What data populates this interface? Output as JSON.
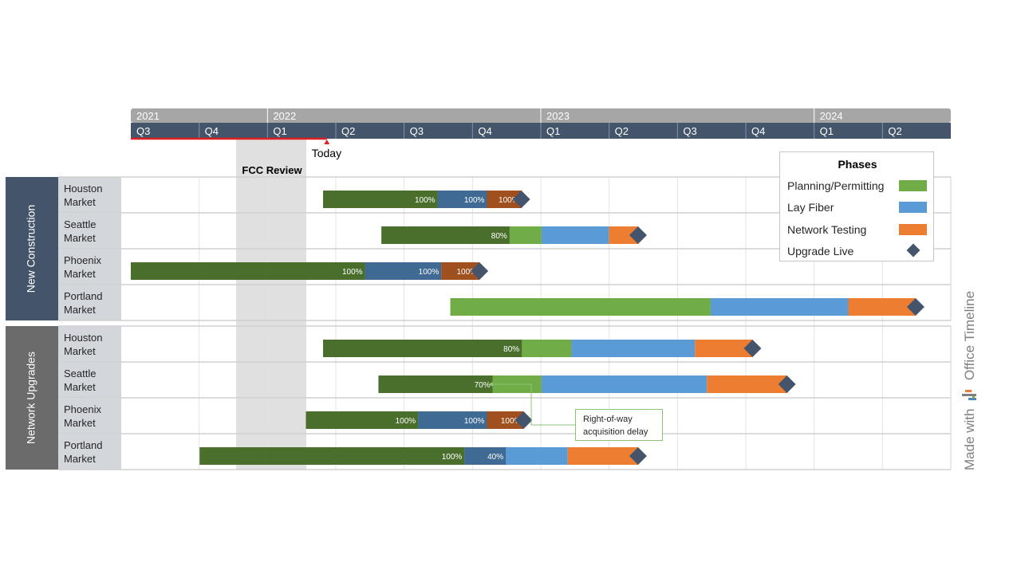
{
  "chart_data": {
    "type": "gantt",
    "timescale": {
      "years": [
        "2021",
        "2022",
        "2023",
        "2024"
      ],
      "quarters": [
        "Q3",
        "Q4",
        "Q1",
        "Q2",
        "Q3",
        "Q4",
        "Q1",
        "Q2",
        "Q3",
        "Q4",
        "Q1",
        "Q2"
      ]
    },
    "today_label": "Today",
    "shaded_period": {
      "label": "FCC Review",
      "start": "2022-Q1",
      "end": "2022-Q1"
    },
    "groups": [
      {
        "name": "New Construction",
        "rows": [
          {
            "label": [
              "Houston",
              "Market"
            ],
            "tasks": [
              {
                "phase": "Planning/Permitting",
                "start": "2022-03-15",
                "end": "2022-08-15",
                "percent_label": "100%"
              },
              {
                "phase": "Lay Fiber",
                "start": "2022-08-15",
                "end": "2022-10-20",
                "percent_label": "100%"
              },
              {
                "phase": "Network Testing",
                "start": "2022-10-20",
                "end": "2022-12-05",
                "percent_label": "100%"
              }
            ],
            "milestone": "2022-12-05"
          },
          {
            "label": [
              "Seattle",
              "Market"
            ],
            "tasks": [
              {
                "phase": "Planning/Permitting",
                "start": "2022-06-01",
                "end": "2023-01-01",
                "percent_label": "80%"
              },
              {
                "phase": "Lay Fiber",
                "start": "2023-01-01",
                "end": "2023-04-01"
              },
              {
                "phase": "Network Testing",
                "start": "2023-04-01",
                "end": "2023-05-10"
              }
            ],
            "milestone": "2023-05-10"
          },
          {
            "label": [
              "Phoenix",
              "Market"
            ],
            "tasks": [
              {
                "phase": "Planning/Permitting",
                "start": "2021-07-01",
                "end": "2022-05-10",
                "percent_label": "100%"
              },
              {
                "phase": "Lay Fiber",
                "start": "2022-05-10",
                "end": "2022-08-20",
                "percent_label": "100%"
              },
              {
                "phase": "Network Testing",
                "start": "2022-08-20",
                "end": "2022-10-10",
                "percent_label": "100%"
              }
            ],
            "milestone": "2022-10-10"
          },
          {
            "label": [
              "Portland",
              "Market"
            ],
            "tasks": [
              {
                "phase": "Planning/Permitting",
                "start": "2022-09-01",
                "end": "2023-08-15"
              },
              {
                "phase": "Lay Fiber",
                "start": "2023-08-15",
                "end": "2024-02-15"
              },
              {
                "phase": "Network Testing",
                "start": "2024-02-15",
                "end": "2024-05-15"
              }
            ],
            "milestone": "2024-05-15"
          }
        ]
      },
      {
        "name": "Network Upgrades",
        "rows": [
          {
            "label": [
              "Houston",
              "Market"
            ],
            "tasks": [
              {
                "phase": "Planning/Permitting",
                "start": "2022-03-15",
                "end": "2023-02-10",
                "percent_label": "80%"
              },
              {
                "phase": "Lay Fiber",
                "start": "2023-02-10",
                "end": "2023-07-25"
              },
              {
                "phase": "Network Testing",
                "start": "2023-07-25",
                "end": "2023-10-10"
              }
            ],
            "milestone": "2023-10-10"
          },
          {
            "label": [
              "Seattle",
              "Market"
            ],
            "tasks": [
              {
                "phase": "Planning/Permitting",
                "start": "2022-05-28",
                "end": "2023-01-01",
                "percent_label": "70%"
              },
              {
                "phase": "Lay Fiber",
                "start": "2023-01-01",
                "end": "2023-08-10"
              },
              {
                "phase": "Network Testing",
                "start": "2023-08-10",
                "end": "2023-11-25"
              }
            ],
            "milestone": "2023-11-25"
          },
          {
            "label": [
              "Phoenix",
              "Market"
            ],
            "tasks": [
              {
                "phase": "Planning/Permitting",
                "start": "2022-02-20",
                "end": "2022-07-20",
                "percent_label": "100%"
              },
              {
                "phase": "Lay Fiber",
                "start": "2022-07-20",
                "end": "2022-10-20",
                "percent_label": "100%"
              },
              {
                "phase": "Network Testing",
                "start": "2022-10-20",
                "end": "2022-12-08",
                "percent_label": "100%"
              }
            ],
            "milestone": "2022-12-08"
          },
          {
            "label": [
              "Portland",
              "Market"
            ],
            "tasks": [
              {
                "phase": "Planning/Permitting",
                "start": "2021-10-01",
                "end": "2022-09-20",
                "percent_label": "100%"
              },
              {
                "phase": "Lay Fiber",
                "start": "2022-09-20",
                "end": "2023-02-05",
                "percent_label": "40%"
              },
              {
                "phase": "Network Testing",
                "start": "2023-02-05",
                "end": "2023-05-10"
              }
            ],
            "milestone": "2023-05-10"
          }
        ]
      }
    ],
    "callout": {
      "text": [
        "Right-of-way",
        "acquisition delay"
      ]
    }
  },
  "legend": {
    "title": "Phases",
    "items": [
      {
        "label": "Planning/Permitting",
        "color": "#70ad47",
        "kind": "swatch"
      },
      {
        "label": "Lay Fiber",
        "color": "#5b9bd5",
        "kind": "swatch"
      },
      {
        "label": "Network  Testing",
        "color": "#ed7d31",
        "kind": "swatch"
      },
      {
        "label": "Upgrade Live",
        "color": "#44546a",
        "kind": "diamond"
      }
    ]
  },
  "colors": {
    "planning_done": "#4a6f2c",
    "planning": "#70ad47",
    "fiber_done": "#3e6a93",
    "fiber": "#5b9bd5",
    "testing_done": "#a0501f",
    "testing": "#ed7d31",
    "milestone": "#44546a",
    "year_band": "#a6a6a6",
    "quarter_band": "#44546a",
    "today_line": "#e02020"
  },
  "watermark": {
    "prefix": "Made with",
    "brand": "Office Timeline"
  }
}
